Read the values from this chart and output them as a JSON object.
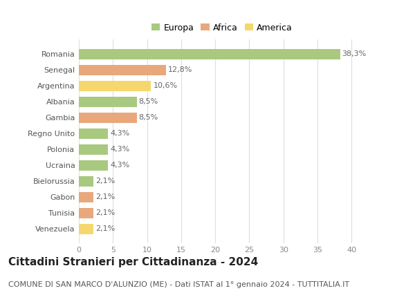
{
  "countries": [
    "Romania",
    "Senegal",
    "Argentina",
    "Albania",
    "Gambia",
    "Regno Unito",
    "Polonia",
    "Ucraina",
    "Bielorussia",
    "Gabon",
    "Tunisia",
    "Venezuela"
  ],
  "values": [
    38.3,
    12.8,
    10.6,
    8.5,
    8.5,
    4.3,
    4.3,
    4.3,
    2.1,
    2.1,
    2.1,
    2.1
  ],
  "labels": [
    "38,3%",
    "12,8%",
    "10,6%",
    "8,5%",
    "8,5%",
    "4,3%",
    "4,3%",
    "4,3%",
    "2,1%",
    "2,1%",
    "2,1%",
    "2,1%"
  ],
  "continents": [
    "Europa",
    "Africa",
    "America",
    "Europa",
    "Africa",
    "Europa",
    "Europa",
    "Europa",
    "Europa",
    "Africa",
    "Africa",
    "America"
  ],
  "colors": {
    "Europa": "#a8c97f",
    "Africa": "#e8a87c",
    "America": "#f5d76e"
  },
  "legend_order": [
    "Europa",
    "Africa",
    "America"
  ],
  "xlim": [
    0,
    42
  ],
  "xticks": [
    0,
    5,
    10,
    15,
    20,
    25,
    30,
    35,
    40
  ],
  "title": "Cittadini Stranieri per Cittadinanza - 2024",
  "subtitle": "COMUNE DI SAN MARCO D'ALUNZIO (ME) - Dati ISTAT al 1° gennaio 2024 - TUTTITALIA.IT",
  "bg_color": "#ffffff",
  "grid_color": "#d8e4d0",
  "bar_height": 0.65,
  "title_fontsize": 11,
  "subtitle_fontsize": 8,
  "label_fontsize": 8,
  "tick_fontsize": 8,
  "legend_fontsize": 9
}
